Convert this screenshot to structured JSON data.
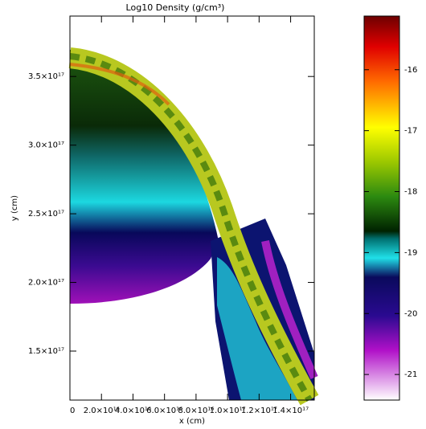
{
  "chart_data": {
    "type": "image",
    "title": "Log10 Density (g/cm³)",
    "x_label": "x (cm)",
    "y_label": "y (cm)",
    "xlim": [
      0,
      1.55e+17
    ],
    "ylim": [
      1.143e+17,
      3.94e+17
    ],
    "xticks": [
      {
        "value": 0,
        "label": "0"
      },
      {
        "value": 2e+16,
        "label": "2.0×10¹⁶"
      },
      {
        "value": 4e+16,
        "label": "4.0×10¹⁶"
      },
      {
        "value": 6e+16,
        "label": "6.0×10¹⁶"
      },
      {
        "value": 8e+16,
        "label": "8.0×10¹⁶"
      },
      {
        "value": 1e+17,
        "label": "1.0×10¹⁷"
      },
      {
        "value": 1.2e+17,
        "label": "1.2×10¹⁷"
      },
      {
        "value": 1.4e+17,
        "label": "1.4×10¹⁷"
      }
    ],
    "yticks": [
      {
        "value": 1.5e+17,
        "label": "1.5×10¹⁷"
      },
      {
        "value": 2e+17,
        "label": "2.0×10¹⁷"
      },
      {
        "value": 2.5e+17,
        "label": "2.5×10¹⁷"
      },
      {
        "value": 3e+17,
        "label": "3.0×10¹⁷"
      },
      {
        "value": 3.5e+17,
        "label": "3.5×10¹⁷"
      }
    ],
    "clim": [
      -21.42,
      -15.12
    ],
    "cticks": [
      -21,
      -20,
      -19,
      -18,
      -17,
      -16
    ]
  }
}
